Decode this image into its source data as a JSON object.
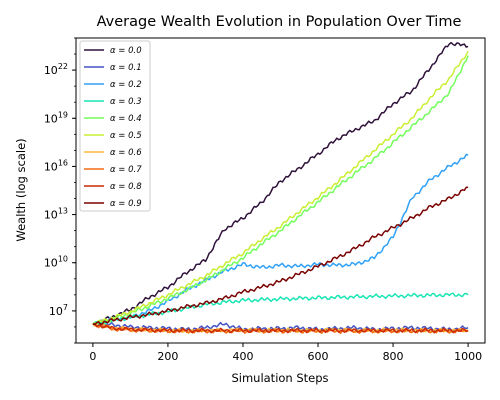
{
  "chart_data": {
    "type": "line",
    "title": "Average Wealth Evolution in Population Over Time",
    "xlabel": "Simulation Steps",
    "ylabel": "Wealth (log scale)",
    "xlim": [
      -45,
      1045
    ],
    "ylim": [
      100000,
      1e+24
    ],
    "yscale": "log",
    "grid": false,
    "legend_position": "top-left",
    "x_ticks": [
      {
        "value": 0,
        "label": "0"
      },
      {
        "value": 200,
        "label": "200"
      },
      {
        "value": 400,
        "label": "400"
      },
      {
        "value": 600,
        "label": "600"
      },
      {
        "value": 800,
        "label": "800"
      },
      {
        "value": 1000,
        "label": "1000"
      }
    ],
    "y_ticks": [
      {
        "value": 10000000,
        "base": "10",
        "exp": "7"
      },
      {
        "value": 10000000000,
        "base": "10",
        "exp": "10"
      },
      {
        "value": 10000000000000,
        "base": "10",
        "exp": "13"
      },
      {
        "value": 10000000000000000,
        "base": "10",
        "exp": "16"
      },
      {
        "value": 10000000000000000000,
        "base": "10",
        "exp": "19"
      },
      {
        "value": 1e+22,
        "base": "10",
        "exp": "22"
      }
    ],
    "series": [
      {
        "name": "α = 0.0",
        "color": "#30123b",
        "x": [
          0,
          50,
          100,
          150,
          200,
          250,
          300,
          350,
          400,
          450,
          500,
          550,
          600,
          650,
          700,
          750,
          800,
          850,
          900,
          950,
          1000
        ],
        "y": [
          1500000.0,
          4000000.0,
          12000000.0,
          70000000.0,
          300000000.0,
          2500000000.0,
          15000000000.0,
          1200000000000.0,
          6000000000000.0,
          60000000000000.0,
          1200000000000000.0,
          8000000000000000.0,
          6e+16,
          5e+17,
          2e+18,
          7e+18,
          8e+19,
          5e+20,
          1.5e+22,
          5e+23,
          3e+23
        ]
      },
      {
        "name": "α = 0.1",
        "color": "#4454c4",
        "x": [
          0,
          50,
          100,
          150,
          200,
          250,
          300,
          350,
          400,
          450,
          500,
          550,
          600,
          650,
          700,
          750,
          800,
          850,
          900,
          950,
          1000
        ],
        "y": [
          1500000.0,
          1400000.0,
          1000000.0,
          900000.0,
          800000.0,
          700000.0,
          900000.0,
          1500000.0,
          700000.0,
          800000.0,
          800000.0,
          900000.0,
          700000.0,
          800000.0,
          900000.0,
          700000.0,
          800000.0,
          900000.0,
          800000.0,
          700000.0,
          900000.0
        ]
      },
      {
        "name": "α = 0.2",
        "color": "#31a1f8",
        "x": [
          0,
          50,
          100,
          150,
          200,
          250,
          300,
          350,
          400,
          450,
          500,
          550,
          600,
          650,
          700,
          750,
          800,
          850,
          900,
          950,
          1000
        ],
        "y": [
          1500000.0,
          3000000.0,
          4000000.0,
          10000000.0,
          40000000.0,
          200000000.0,
          800000000.0,
          3000000000.0,
          8000000000.0,
          5000000000.0,
          7000000000.0,
          6000000000.0,
          8000000000.0,
          7000000000.0,
          8000000000.0,
          20000000000.0,
          400000000000.0,
          100000000000000.0,
          1500000000000000.0,
          1e+16,
          5e+16
        ]
      },
      {
        "name": "α = 0.3",
        "color": "#1be5b5",
        "x": [
          0,
          50,
          100,
          150,
          200,
          250,
          300,
          350,
          400,
          450,
          500,
          550,
          600,
          650,
          700,
          750,
          800,
          850,
          900,
          950,
          1000
        ],
        "y": [
          1500000.0,
          2500000.0,
          4000000.0,
          6000000.0,
          9000000.0,
          15000000.0,
          25000000.0,
          35000000.0,
          45000000.0,
          50000000.0,
          55000000.0,
          60000000.0,
          65000000.0,
          70000000.0,
          75000000.0,
          80000000.0,
          85000000.0,
          90000000.0,
          95000000.0,
          100000000.0,
          100000000.0
        ]
      },
      {
        "name": "α = 0.4",
        "color": "#74fe5d",
        "x": [
          0,
          50,
          100,
          150,
          200,
          250,
          300,
          350,
          400,
          450,
          500,
          550,
          600,
          650,
          700,
          750,
          800,
          850,
          900,
          950,
          1000
        ],
        "y": [
          1500000.0,
          3000000.0,
          7000000.0,
          20000000.0,
          60000000.0,
          200000000.0,
          800000000.0,
          4000000000.0,
          20000000000.0,
          150000000000.0,
          1000000000000.0,
          8000000000000.0,
          60000000000000.0,
          500000000000000.0,
          4000000000000000.0,
          3e+16,
          3e+17,
          3e+18,
          3e+19,
          4e+20,
          8e+22
        ]
      },
      {
        "name": "α = 0.5",
        "color": "#c8ef34",
        "x": [
          0,
          50,
          100,
          150,
          200,
          250,
          300,
          350,
          400,
          450,
          500,
          550,
          600,
          650,
          700,
          750,
          800,
          850,
          900,
          950,
          1000
        ],
        "y": [
          1500000.0,
          3500000.0,
          9000000.0,
          30000000.0,
          100000000.0,
          400000000.0,
          1500000000.0,
          8000000000.0,
          40000000000.0,
          300000000000.0,
          2000000000000.0,
          16000000000000.0,
          120000000000000.0,
          1000000000000000.0,
          1e+16,
          1e+17,
          1e+18,
          1e+19,
          2e+20,
          3e+21,
          1.5e+23
        ]
      },
      {
        "name": "α = 0.6",
        "color": "#faba39",
        "x": [
          0,
          50,
          100,
          150,
          200,
          250,
          300,
          350,
          400,
          450,
          500,
          550,
          600,
          650,
          700,
          750,
          800,
          850,
          900,
          950,
          1000
        ],
        "y": [
          1500000.0,
          900000.0,
          700000.0,
          650000.0,
          600000.0,
          550000.0,
          600000.0,
          600000.0,
          650000.0,
          600000.0,
          650000.0,
          600000.0,
          600000.0,
          650000.0,
          600000.0,
          600000.0,
          650000.0,
          600000.0,
          600000.0,
          600000.0,
          600000.0
        ]
      },
      {
        "name": "α = 0.7",
        "color": "#f66b19",
        "x": [
          0,
          50,
          100,
          150,
          200,
          250,
          300,
          350,
          400,
          450,
          500,
          550,
          600,
          650,
          700,
          750,
          800,
          850,
          900,
          950,
          1000
        ],
        "y": [
          1500000.0,
          800000.0,
          650000.0,
          600000.0,
          550000.0,
          550000.0,
          550000.0,
          550000.0,
          550000.0,
          550000.0,
          550000.0,
          550000.0,
          550000.0,
          550000.0,
          550000.0,
          550000.0,
          550000.0,
          550000.0,
          550000.0,
          550000.0,
          550000.0
        ]
      },
      {
        "name": "α = 0.8",
        "color": "#ca2a04",
        "x": [
          0,
          50,
          100,
          150,
          200,
          250,
          300,
          350,
          400,
          450,
          500,
          550,
          600,
          650,
          700,
          750,
          800,
          850,
          900,
          950,
          1000
        ],
        "y": [
          1500000.0,
          850000.0,
          700000.0,
          650000.0,
          600000.0,
          600000.0,
          600000.0,
          600000.0,
          600000.0,
          600000.0,
          600000.0,
          600000.0,
          600000.0,
          600000.0,
          600000.0,
          600000.0,
          600000.0,
          600000.0,
          600000.0,
          600000.0,
          600000.0
        ]
      },
      {
        "name": "α = 0.9",
        "color": "#7a0403",
        "x": [
          0,
          50,
          100,
          150,
          200,
          250,
          300,
          350,
          400,
          450,
          500,
          550,
          600,
          650,
          700,
          750,
          800,
          850,
          900,
          950,
          1000
        ],
        "y": [
          1500000.0,
          2500000.0,
          4000000.0,
          6000000.0,
          10000000.0,
          18000000.0,
          30000000.0,
          60000000.0,
          150000000.0,
          300000000.0,
          700000000.0,
          2000000000.0,
          6000000000.0,
          20000000000.0,
          80000000000.0,
          400000000000.0,
          1500000000000.0,
          6000000000000.0,
          30000000000000.0,
          100000000000000.0,
          500000000000000.0
        ]
      }
    ]
  }
}
